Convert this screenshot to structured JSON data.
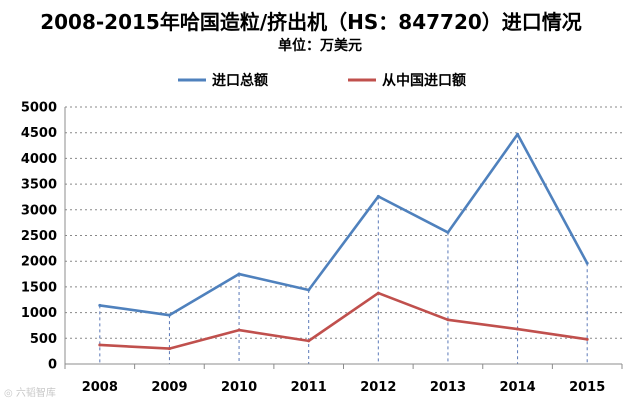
{
  "title": "2008-2015年哈国造粒/挤出机（HS：847720）进口情况",
  "unit_label": "单位：万美元",
  "watermark": "六韬智库",
  "colors": {
    "series_1": "#4f81bd",
    "series_2": "#c0504d",
    "grid": "#888888",
    "drop_line": "#5a78b8",
    "axis": "#8c8c8c"
  },
  "chart_data": {
    "type": "line",
    "x": [
      "2008",
      "2009",
      "2010",
      "2011",
      "2012",
      "2013",
      "2014",
      "2015"
    ],
    "series": [
      {
        "name": "进口总额",
        "values": [
          1140,
          950,
          1750,
          1440,
          3260,
          2560,
          4470,
          1960
        ]
      },
      {
        "name": "从中国进口额",
        "values": [
          370,
          300,
          660,
          450,
          1380,
          860,
          680,
          480
        ]
      }
    ],
    "yticks": [
      0,
      500,
      1000,
      1500,
      2000,
      2500,
      3000,
      3500,
      4000,
      4500,
      5000
    ],
    "ylim": [
      0,
      5000
    ],
    "grid": "horizontal, dashed",
    "drop_lines": true,
    "legend_position": "top-center"
  }
}
